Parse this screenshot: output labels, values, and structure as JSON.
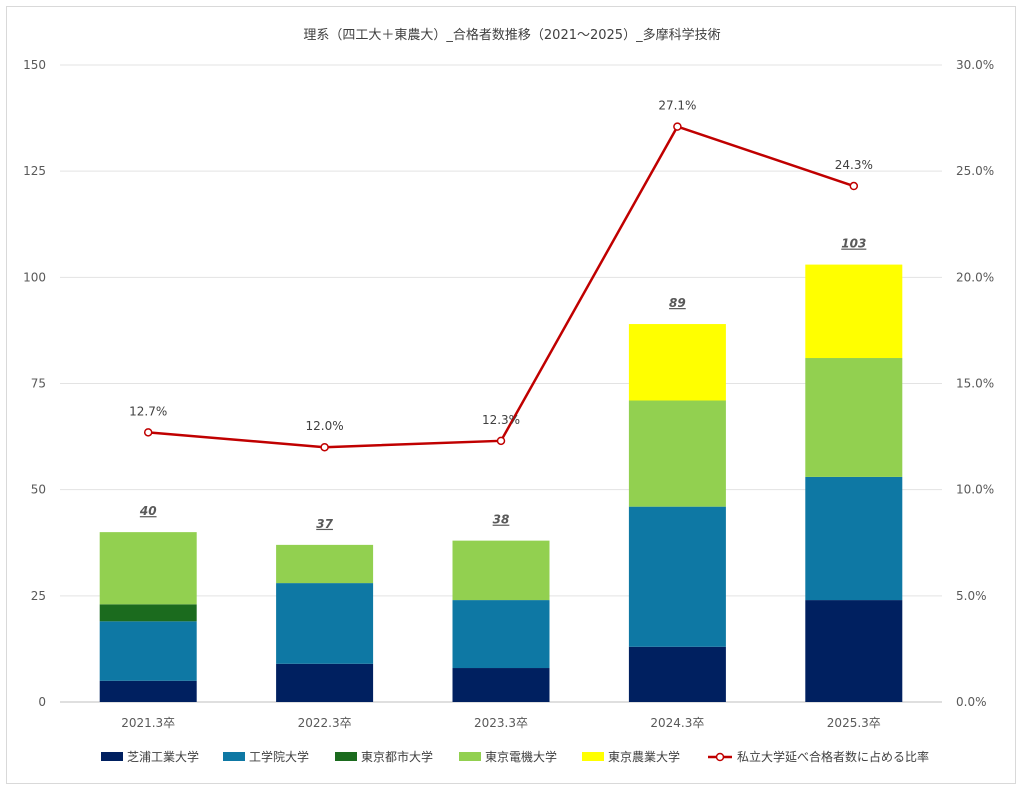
{
  "chart_data": {
    "type": "bar",
    "stacked": true,
    "title": "理系（四工大＋東農大）_合格者数推移（2021～2025）_多摩科学技術",
    "categories": [
      "2021.3卒",
      "2022.3卒",
      "2023.3卒",
      "2024.3卒",
      "2025.3卒"
    ],
    "ylim": [
      0,
      150
    ],
    "yticks": [
      "0",
      "25",
      "50",
      "75",
      "100",
      "125",
      "150"
    ],
    "y2lim": [
      0,
      30
    ],
    "y2ticks": [
      "0.0%",
      "5.0%",
      "10.0%",
      "15.0%",
      "20.0%",
      "25.0%",
      "30.0%"
    ],
    "grid": true,
    "legend_position": "bottom",
    "series": [
      {
        "name": "芝浦工業大学",
        "color": "#002060",
        "values": [
          5,
          9,
          8,
          13,
          24
        ]
      },
      {
        "name": "工学院大学",
        "color": "#0E78A4",
        "values": [
          14,
          19,
          16,
          33,
          29
        ]
      },
      {
        "name": "東京都市大学",
        "color": "#1B6B1E",
        "values": [
          4,
          0,
          0,
          0,
          0
        ]
      },
      {
        "name": "東京電機大学",
        "color": "#92D050",
        "values": [
          17,
          9,
          14,
          25,
          28
        ]
      },
      {
        "name": "東京農業大学",
        "color": "#FFFF00",
        "values": [
          0,
          0,
          0,
          18,
          22
        ]
      }
    ],
    "totals": [
      "40",
      "37",
      "38",
      "89",
      "103"
    ],
    "line_series": {
      "name": "私立大学延べ合格者数に占める比率",
      "color": "#C00000",
      "axis": "secondary",
      "values": [
        12.7,
        12.0,
        12.3,
        27.1,
        24.3
      ],
      "labels": [
        "12.7%",
        "12.0%",
        "12.3%",
        "27.1%",
        "24.3%"
      ]
    }
  }
}
